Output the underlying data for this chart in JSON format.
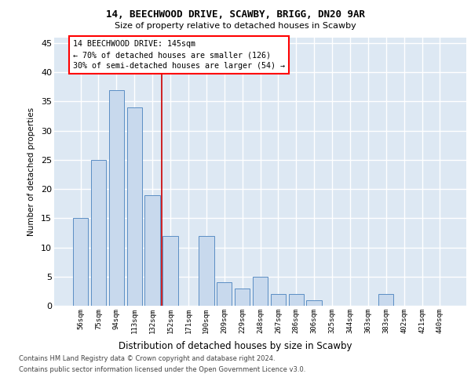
{
  "title1": "14, BEECHWOOD DRIVE, SCAWBY, BRIGG, DN20 9AR",
  "title2": "Size of property relative to detached houses in Scawby",
  "xlabel": "Distribution of detached houses by size in Scawby",
  "ylabel": "Number of detached properties",
  "categories": [
    "56sqm",
    "75sqm",
    "94sqm",
    "113sqm",
    "132sqm",
    "152sqm",
    "171sqm",
    "190sqm",
    "209sqm",
    "229sqm",
    "248sqm",
    "267sqm",
    "286sqm",
    "306sqm",
    "325sqm",
    "344sqm",
    "363sqm",
    "383sqm",
    "402sqm",
    "421sqm",
    "440sqm"
  ],
  "values": [
    15,
    25,
    37,
    34,
    19,
    12,
    0,
    12,
    4,
    3,
    5,
    2,
    2,
    1,
    0,
    0,
    0,
    2,
    0,
    0,
    0
  ],
  "bar_color": "#c8d9ed",
  "bar_edge_color": "#5b8ec4",
  "annotation_line1": "14 BEECHWOOD DRIVE: 145sqm",
  "annotation_line2": "← 70% of detached houses are smaller (126)",
  "annotation_line3": "30% of semi-detached houses are larger (54) →",
  "vline_x": 4.5,
  "ylim": [
    0,
    46
  ],
  "yticks": [
    0,
    5,
    10,
    15,
    20,
    25,
    30,
    35,
    40,
    45
  ],
  "footer1": "Contains HM Land Registry data © Crown copyright and database right 2024.",
  "footer2": "Contains public sector information licensed under the Open Government Licence v3.0.",
  "plot_bg_color": "#dde8f3"
}
